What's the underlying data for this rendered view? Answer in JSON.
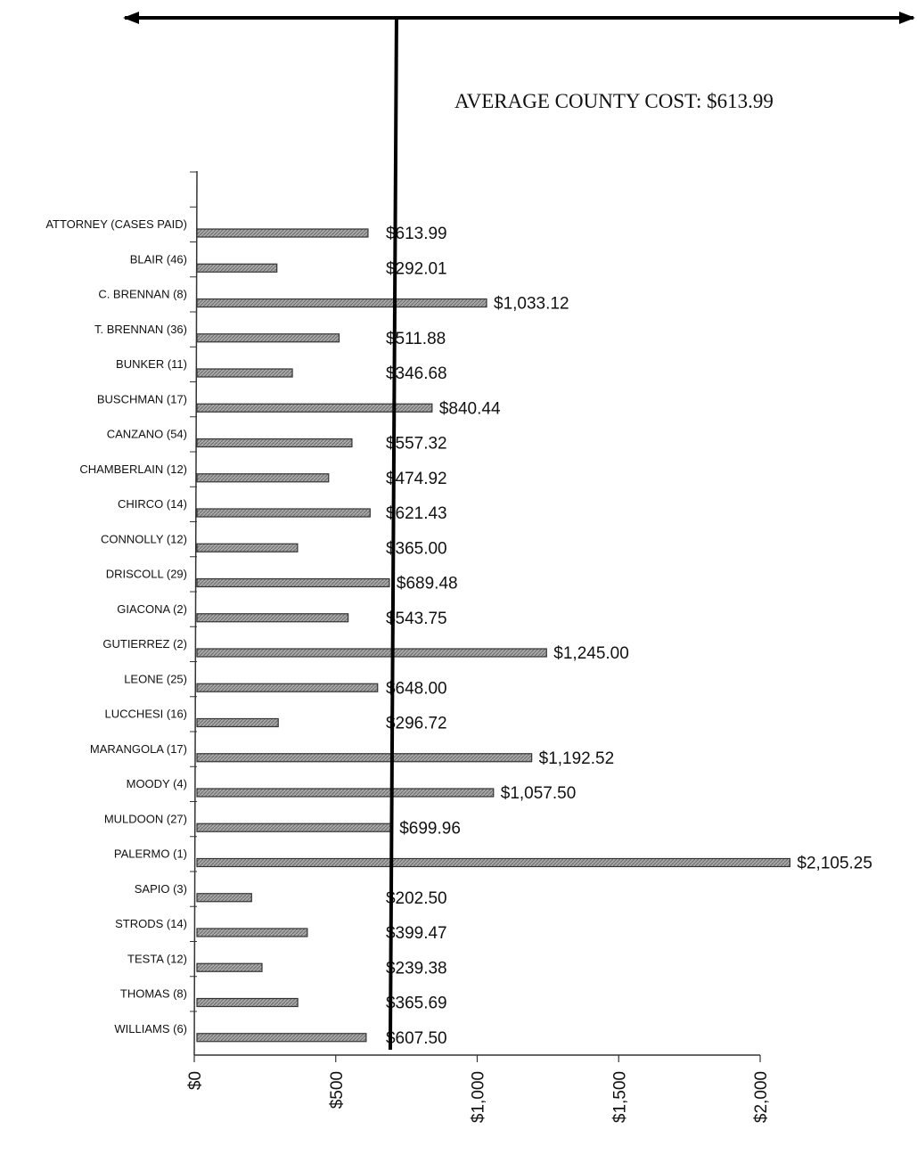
{
  "annotation": {
    "average_label": "AVERAGE COUNTY COST: $613.99"
  },
  "chart_data": {
    "type": "bar",
    "orientation": "horizontal",
    "categories": [
      "ATTORNEY (CASES PAID)",
      "BLAIR (46)",
      "C. BRENNAN (8)",
      "T. BRENNAN (36)",
      "BUNKER (11)",
      "BUSCHMAN (17)",
      "CANZANO (54)",
      "CHAMBERLAIN (12)",
      "CHIRCO (14)",
      "CONNOLLY (12)",
      "DRISCOLL (29)",
      "GIACONA (2)",
      "GUTIERREZ (2)",
      "LEONE (25)",
      "LUCCHESI (16)",
      "MARANGOLA (17)",
      "MOODY (4)",
      "MULDOON (27)",
      "PALERMO (1)",
      "SAPIO (3)",
      "STRODS (14)",
      "TESTA (12)",
      "THOMAS (8)",
      "WILLIAMS (6)"
    ],
    "values": [
      613.99,
      292.01,
      1033.12,
      511.88,
      346.68,
      840.44,
      557.32,
      474.92,
      621.43,
      365.0,
      689.48,
      543.75,
      1245.0,
      648.0,
      296.72,
      1192.52,
      1057.5,
      699.96,
      2105.25,
      202.5,
      399.47,
      239.38,
      365.69,
      607.5
    ],
    "value_labels": [
      "$613.99",
      "$292.01",
      "$1,033.12",
      "$511.88",
      "$346.68",
      "$840.44",
      "$557.32",
      "$474.92",
      "$621.43",
      "$365.00",
      "$689.48",
      "$543.75",
      "$1,245.00",
      "$648.00",
      "$296.72",
      "$1,192.52",
      "$1,057.50",
      "$699.96",
      "$2,105.25",
      "$202.50",
      "$399.47",
      "$239.38",
      "$365.69",
      "$607.50"
    ],
    "xlim": [
      0,
      2000
    ],
    "x_ticks": [
      0,
      500,
      1000,
      1500,
      2000
    ],
    "x_tick_labels": [
      "$0",
      "$500",
      "$1,000",
      "$1,500",
      "$2,000"
    ],
    "reference_line": 613.99,
    "colors": {
      "bar_fill": "#9a9a9a",
      "bar_stroke": "#333333",
      "line": "#000000"
    },
    "grid": false,
    "legend": "none"
  }
}
